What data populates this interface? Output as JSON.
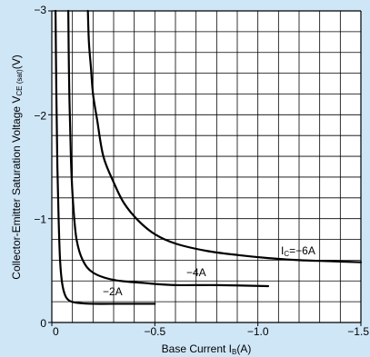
{
  "chart_data": {
    "type": "line",
    "xlabel": "Base Current I",
    "xlabel_sub": "B",
    "xlabel_unit": "(A)",
    "ylabel": "Collector-Emitter Saturation Voltage V",
    "ylabel_sub": "CE (sat)",
    "ylabel_unit": "(V)",
    "xlim": [
      0,
      -1.5
    ],
    "ylim": [
      0,
      -3
    ],
    "x_ticks": [
      0,
      -0.5,
      -1.0,
      -1.5
    ],
    "x_tick_labels": [
      "0",
      "−0.5",
      "−1.0",
      "−1.5"
    ],
    "y_ticks": [
      0,
      -1,
      -2,
      -3
    ],
    "y_tick_labels": [
      "0",
      "−1",
      "−2",
      "−3"
    ],
    "grid": true,
    "series": [
      {
        "name": "−2A",
        "x": [
          -0.018,
          -0.022,
          -0.027,
          -0.033,
          -0.04,
          -0.05,
          -0.065,
          -0.085,
          -0.12,
          -0.2,
          -0.35,
          -0.5
        ],
        "y": [
          -3.0,
          -2.2,
          -1.5,
          -1.0,
          -0.6,
          -0.38,
          -0.26,
          -0.21,
          -0.19,
          -0.18,
          -0.18,
          -0.18
        ]
      },
      {
        "name": "−4A",
        "x": [
          -0.08,
          -0.082,
          -0.085,
          -0.09,
          -0.095,
          -0.105,
          -0.12,
          -0.15,
          -0.2,
          -0.3,
          -0.45,
          -0.6,
          -0.8,
          -1.05
        ],
        "y": [
          -3.0,
          -2.6,
          -2.2,
          -1.8,
          -1.45,
          -1.1,
          -0.8,
          -0.6,
          -0.48,
          -0.41,
          -0.38,
          -0.36,
          -0.36,
          -0.35
        ]
      },
      {
        "name": "I",
        "name_sub": "C",
        "name_rest": "=−6A",
        "x": [
          -0.175,
          -0.18,
          -0.19,
          -0.2,
          -0.22,
          -0.25,
          -0.3,
          -0.35,
          -0.42,
          -0.5,
          -0.6,
          -0.75,
          -0.9,
          -1.05,
          -1.2,
          -1.35,
          -1.5
        ],
        "y": [
          -3.0,
          -2.7,
          -2.45,
          -2.2,
          -1.95,
          -1.6,
          -1.35,
          -1.15,
          -0.98,
          -0.85,
          -0.76,
          -0.69,
          -0.65,
          -0.62,
          -0.6,
          -0.59,
          -0.58
        ]
      }
    ],
    "annotations": [
      {
        "text": "−2A",
        "series": 0
      },
      {
        "text": "−4A",
        "series": 1
      },
      {
        "text": "I",
        "sub": "C",
        "rest": "=−6A",
        "series": 2
      }
    ],
    "colors": {
      "background": "#cfe6f7",
      "plot_area": "#ffffff",
      "grid": "#000000",
      "curve": "#000000"
    }
  }
}
